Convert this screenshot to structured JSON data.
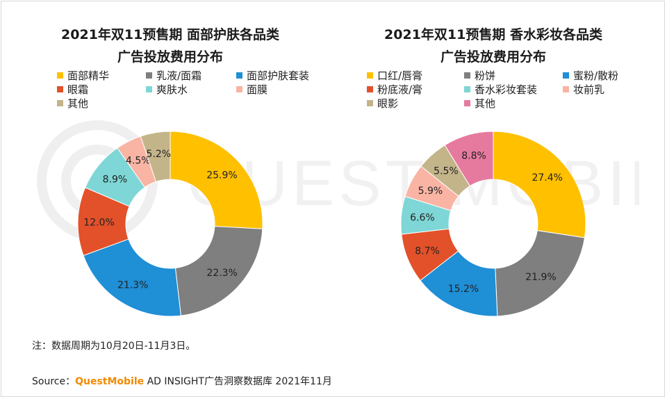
{
  "charts": [
    {
      "title_line1": "2021年双11预售期 面部护肤各品类",
      "title_line2": "广告投放费用分布",
      "chart_data": {
        "type": "pie",
        "categories": [
          "面部精华",
          "乳液/面霜",
          "面部护肤套装",
          "眼霜",
          "爽肤水",
          "面膜",
          "其他"
        ],
        "values": [
          25.9,
          22.3,
          21.3,
          12.0,
          8.9,
          4.5,
          5.2
        ],
        "labels": [
          "25.9%",
          "22.3%",
          "21.3%",
          "12.0%",
          "8.9%",
          "4.5%",
          "5.2%"
        ],
        "colors": [
          "#FFC000",
          "#7F7F7F",
          "#1F8FD6",
          "#E2512A",
          "#7FD6D6",
          "#F9B4A4",
          "#C4B48A"
        ],
        "legend_placement": "top"
      }
    },
    {
      "title_line1": "2021年双11预售期 香水彩妆各品类",
      "title_line2": "广告投放费用分布",
      "chart_data": {
        "type": "pie",
        "categories": [
          "口红/唇膏",
          "粉饼",
          "蜜粉/散粉",
          "粉底液/膏",
          "香水彩妆套装",
          "妆前乳",
          "眼影",
          "其他"
        ],
        "values": [
          27.4,
          21.9,
          15.2,
          8.7,
          6.6,
          5.9,
          5.5,
          8.8
        ],
        "labels": [
          "27.4%",
          "21.9%",
          "15.2%",
          "8.7%",
          "6.6%",
          "5.9%",
          "5.5%",
          "8.8%"
        ],
        "colors": [
          "#FFC000",
          "#7F7F7F",
          "#1F8FD6",
          "#E2512A",
          "#7FD6D6",
          "#F9B4A4",
          "#C4B48A",
          "#E67A9E"
        ],
        "legend_placement": "top"
      }
    }
  ],
  "note": "注：数据周期为10月20日-11月3日。",
  "source_prefix": "Source：",
  "source_brand": "QuestMobile",
  "source_rest": " AD INSIGHT广告洞察数据库 2021年11月",
  "watermark_text": "QUEST MOBILE"
}
